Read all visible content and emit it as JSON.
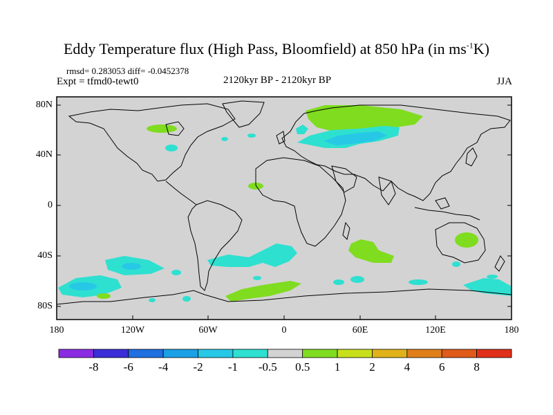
{
  "title": {
    "main": "Eddy Temperature flux (High Pass, Bloomfield) at 850 hPa (in ms",
    "sup": "-1",
    "end": "K)"
  },
  "stats": "rmsd= 0.283053 diff= -0.0452378",
  "expt": "Expt = tfmd0-tewt0",
  "center_label": "2120kyr BP - 2120kyr BP",
  "season": "JJA",
  "lat_ticks": [
    "80N",
    "40N",
    "0",
    "40S",
    "80S"
  ],
  "lon_ticks": [
    "180",
    "120W",
    "60W",
    "0",
    "60E",
    "120E",
    "180"
  ],
  "colorbar": {
    "labels": [
      "-8",
      "-6",
      "-4",
      "-2",
      "-1",
      "-0.5",
      "0.5",
      "1",
      "2",
      "4",
      "6",
      "8"
    ],
    "colors": [
      "#8a2be2",
      "#3a2fd8",
      "#1f6fe0",
      "#1aa0e6",
      "#27c8e6",
      "#2ee0d0",
      "#d3d3d3",
      "#7fdc1f",
      "#c8e01c",
      "#e0b21a",
      "#e07f1a",
      "#e05a1a",
      "#e0301a"
    ]
  },
  "map": {
    "land_color": "#d3d3d3",
    "colors": {
      "cyan": "#2ee0d0",
      "green": "#7fdc1f",
      "lightblue": "#27c8e6"
    }
  }
}
